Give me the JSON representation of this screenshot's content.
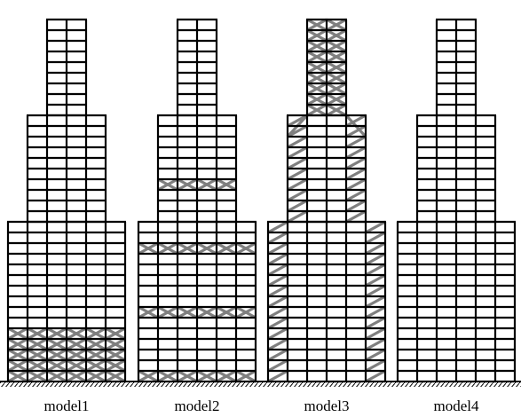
{
  "colors": {
    "frame": "#000000",
    "brace": "#7f7f7f",
    "ground": "#000000",
    "background": "#ffffff"
  },
  "models": [
    {
      "label": "model1",
      "tiers": [
        {
          "stories": 15,
          "bays": 6
        },
        {
          "stories": 10,
          "bays": 4
        },
        {
          "stories": 9,
          "bays": 2
        }
      ],
      "bracing": {
        "type": "x-braced bays",
        "stories": [
          1,
          2,
          3,
          4,
          5
        ]
      }
    },
    {
      "label": "model2",
      "tiers": [
        {
          "stories": 15,
          "bays": 6
        },
        {
          "stories": 10,
          "bays": 4
        },
        {
          "stories": 9,
          "bays": 2
        }
      ],
      "bracing": {
        "type": "outrigger belt trusses",
        "stories": [
          1,
          7,
          13,
          19
        ]
      }
    },
    {
      "label": "model3",
      "tiers": [
        {
          "stories": 15,
          "bays": 6
        },
        {
          "stories": 10,
          "bays": 4
        },
        {
          "stories": 9,
          "bays": 2
        }
      ],
      "bracing": {
        "type": "perimeter diagonal braces"
      }
    },
    {
      "label": "model4",
      "tiers": [
        {
          "stories": 15,
          "bays": 6
        },
        {
          "stories": 10,
          "bays": 4
        },
        {
          "stories": 9,
          "bays": 2
        }
      ],
      "bracing": {
        "type": "none"
      }
    }
  ]
}
